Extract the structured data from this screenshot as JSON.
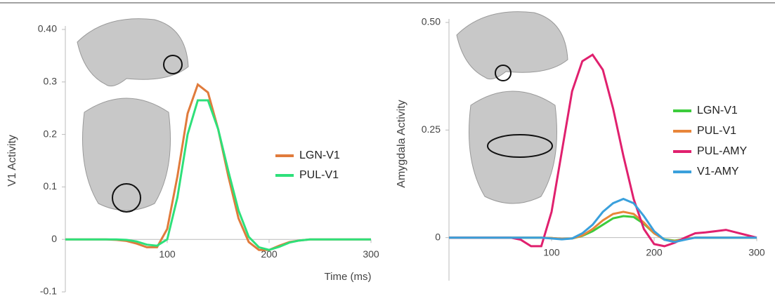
{
  "chart_data": [
    {
      "type": "line",
      "y_label": "V1 Activity",
      "x_label": "Time (ms)",
      "x": [
        0,
        10,
        20,
        30,
        40,
        50,
        60,
        70,
        80,
        90,
        100,
        110,
        120,
        130,
        140,
        150,
        160,
        170,
        180,
        190,
        200,
        210,
        220,
        230,
        240,
        250,
        260,
        270,
        280,
        290,
        300
      ],
      "series": [
        {
          "name": "LGN-V1",
          "color": "#e07b3c",
          "values": [
            0,
            0,
            0,
            0,
            0,
            -0.001,
            -0.003,
            -0.008,
            -0.015,
            -0.015,
            0.02,
            0.12,
            0.24,
            0.295,
            0.28,
            0.21,
            0.12,
            0.04,
            -0.005,
            -0.02,
            -0.02,
            -0.012,
            -0.005,
            -0.002,
            0,
            0,
            0,
            0,
            0,
            0,
            0
          ]
        },
        {
          "name": "PUL-V1",
          "color": "#2ee07a",
          "values": [
            0,
            0,
            0,
            0,
            0,
            0,
            -0.001,
            -0.004,
            -0.01,
            -0.012,
            0,
            0.08,
            0.2,
            0.265,
            0.265,
            0.21,
            0.13,
            0.055,
            0.005,
            -0.015,
            -0.02,
            -0.014,
            -0.006,
            -0.002,
            0,
            0,
            0,
            0,
            0,
            0,
            0
          ]
        }
      ],
      "xlim": [
        0,
        300
      ],
      "xticks": [
        100,
        200,
        300
      ],
      "ylim": [
        -0.1,
        0.4
      ],
      "yticks": [
        {
          "value": 0.4,
          "label": "0.40"
        },
        0.3,
        0.2,
        0.1,
        0,
        -0.1
      ]
    },
    {
      "type": "line",
      "y_label": "Amygdala Activity",
      "x": [
        0,
        10,
        20,
        30,
        40,
        50,
        60,
        70,
        80,
        90,
        100,
        110,
        120,
        130,
        140,
        150,
        160,
        170,
        180,
        190,
        200,
        210,
        220,
        230,
        240,
        250,
        260,
        270,
        280,
        290,
        300
      ],
      "series": [
        {
          "name": "LGN-V1",
          "color": "#3ccc3c",
          "values": [
            0,
            0,
            0,
            0,
            0,
            0,
            0,
            0,
            0,
            0,
            -0.001,
            -0.003,
            -0.002,
            0.004,
            0.015,
            0.03,
            0.045,
            0.05,
            0.048,
            0.032,
            0.01,
            -0.004,
            -0.007,
            -0.003,
            0,
            0,
            0,
            0,
            0,
            0,
            0
          ]
        },
        {
          "name": "PUL-V1",
          "color": "#e8863a",
          "values": [
            0,
            0,
            0,
            0,
            0,
            0,
            0,
            0,
            0,
            0,
            -0.001,
            -0.003,
            -0.002,
            0.005,
            0.02,
            0.04,
            0.055,
            0.06,
            0.055,
            0.035,
            0.01,
            -0.005,
            -0.008,
            -0.003,
            0,
            0,
            0,
            0,
            0,
            0,
            0
          ]
        },
        {
          "name": "PUL-AMY",
          "color": "#e0206e",
          "values": [
            0,
            0,
            0,
            0,
            0,
            0,
            0,
            -0.005,
            -0.02,
            -0.02,
            0.06,
            0.2,
            0.34,
            0.41,
            0.425,
            0.39,
            0.3,
            0.19,
            0.09,
            0.02,
            -0.015,
            -0.02,
            -0.012,
            0,
            0.01,
            0.012,
            0.015,
            0.018,
            0.012,
            0.006,
            0
          ]
        },
        {
          "name": "V1-AMY",
          "color": "#3aa0dc",
          "values": [
            0,
            0,
            0,
            0,
            0,
            0,
            0,
            0,
            0,
            0,
            -0.002,
            -0.004,
            -0.002,
            0.01,
            0.03,
            0.06,
            0.08,
            0.09,
            0.08,
            0.05,
            0.015,
            -0.005,
            -0.01,
            -0.005,
            0,
            0,
            0,
            0,
            0,
            0,
            0
          ]
        }
      ],
      "xlim": [
        0,
        300
      ],
      "xticks": [
        100,
        200,
        300
      ],
      "ylim": [
        -0.1,
        0.5
      ],
      "yticks": [
        {
          "value": 0.5,
          "label": "0.50"
        },
        0.25,
        0
      ]
    }
  ]
}
